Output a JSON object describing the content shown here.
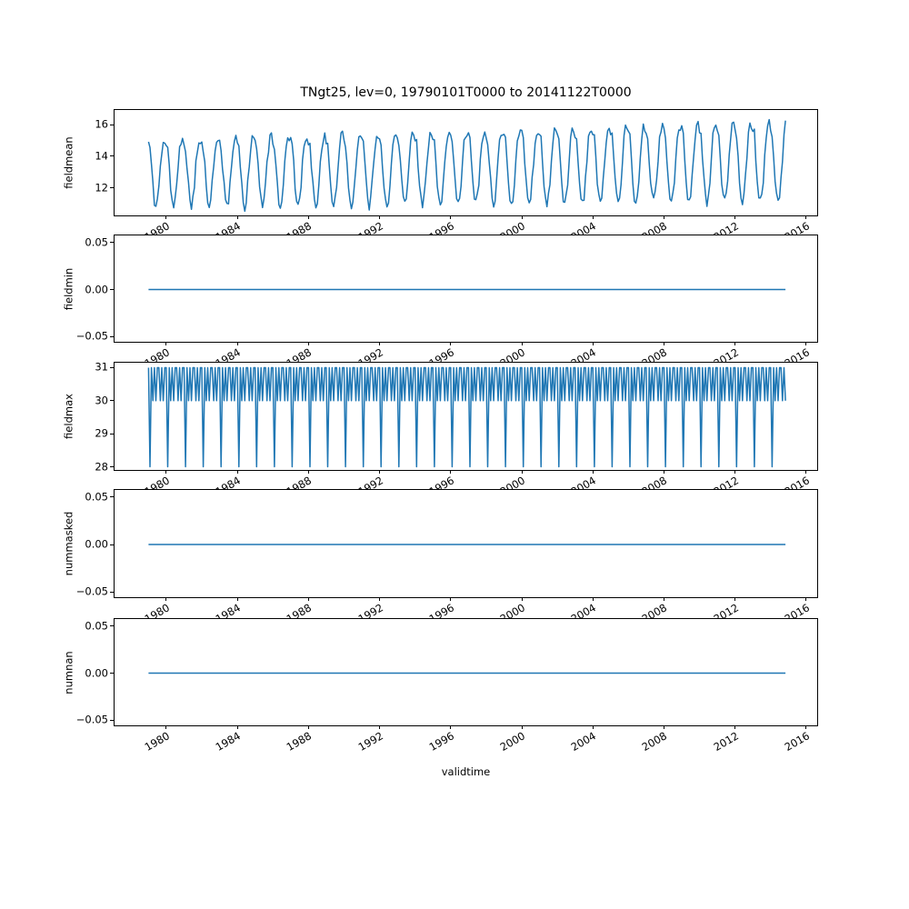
{
  "figure": {
    "title": "TNgt25, lev=0, 19790101T0000 to 20141122T0000",
    "xlabel": "validtime",
    "line_color": "#1f77b4",
    "axis_color": "#000000",
    "background_color": "#ffffff"
  },
  "x_axis": {
    "tick_values": [
      1980,
      1984,
      1988,
      1992,
      1996,
      2000,
      2004,
      2008,
      2012,
      2016
    ],
    "tick_labels": [
      "1980",
      "1984",
      "1988",
      "1992",
      "1996",
      "2000",
      "2004",
      "2008",
      "2012",
      "2016"
    ],
    "lim": [
      1977.09,
      2016.72
    ],
    "tick_label_rotation_deg": 30
  },
  "time_range": {
    "start_year": 1979,
    "start_month": 1,
    "end_year": 2014,
    "end_month": 11,
    "step": "monthly",
    "start_stamp": "19790101T0000",
    "end_stamp": "20141122T0000"
  },
  "chart_data": [
    {
      "type": "line",
      "ylabel": "fieldmean",
      "ytick_values": [
        16,
        14,
        12
      ],
      "ytick_labels": [
        "16",
        "14",
        "12"
      ],
      "ylim": [
        10.14,
        16.93
      ],
      "series": {
        "kind": "seasonal_monthly",
        "monthly_climatology": [
          14.7,
          14.35,
          13.4,
          12.1,
          11.1,
          10.75,
          11.15,
          12.15,
          13.4,
          14.35,
          14.9,
          15.0
        ],
        "trend_per_year": 0.012,
        "peak_extra_trend_per_year": 0.02,
        "peak_threshold": 14.0,
        "noise_amplitude": 0.6,
        "seed": 20141122,
        "value_min": 10.45,
        "value_max": 16.62
      }
    },
    {
      "type": "line",
      "ylabel": "fieldmin",
      "ytick_values": [
        0.05,
        0.0,
        -0.05
      ],
      "ytick_labels": [
        "0.05",
        "0.00",
        "−0.05"
      ],
      "ylim": [
        -0.0575,
        0.0575
      ],
      "series": {
        "kind": "constant",
        "value": 0.0
      }
    },
    {
      "type": "line",
      "ylabel": "fieldmax",
      "ytick_values": [
        31,
        30,
        29,
        28
      ],
      "ytick_labels": [
        "31",
        "30",
        "29",
        "28"
      ],
      "ylim": [
        27.85,
        31.15
      ],
      "series": {
        "kind": "repeating_monthly_pattern",
        "pattern": [
          31,
          28,
          31,
          30,
          31,
          30,
          31,
          31,
          30,
          31,
          30,
          31
        ]
      }
    },
    {
      "type": "line",
      "ylabel": "nummasked",
      "ytick_values": [
        0.05,
        0.0,
        -0.05
      ],
      "ytick_labels": [
        "0.05",
        "0.00",
        "−0.05"
      ],
      "ylim": [
        -0.0575,
        0.0575
      ],
      "series": {
        "kind": "constant",
        "value": 0.0
      }
    },
    {
      "type": "line",
      "ylabel": "numnan",
      "ytick_values": [
        0.05,
        0.0,
        -0.05
      ],
      "ytick_labels": [
        "0.05",
        "0.00",
        "−0.05"
      ],
      "ylim": [
        -0.0575,
        0.0575
      ],
      "series": {
        "kind": "constant",
        "value": 0.0
      }
    }
  ]
}
